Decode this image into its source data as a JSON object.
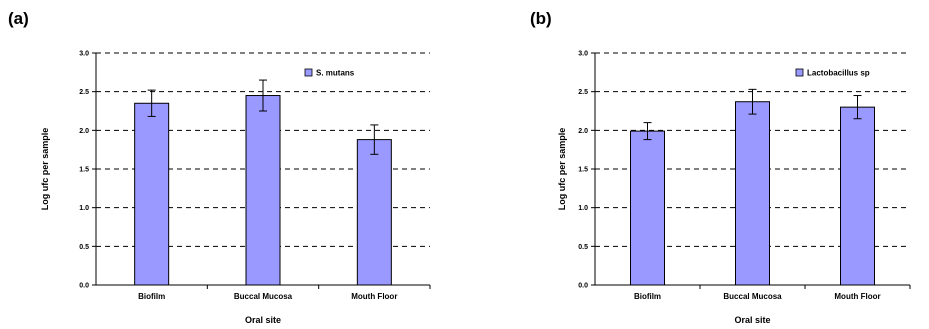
{
  "chart_data": [
    {
      "panel_label": "(a)",
      "type": "bar",
      "categories": [
        "Biofilm",
        "Buccal Mucosa",
        "Mouth Floor"
      ],
      "series": [
        {
          "name": "S. mutans",
          "values": [
            2.35,
            2.45,
            1.88
          ],
          "errors": [
            0.17,
            0.2,
            0.19
          ]
        }
      ],
      "xlabel": "Oral site",
      "ylabel": "Log ufc per sample",
      "ylim": [
        0.0,
        3.0
      ],
      "yticks": [
        "3.0",
        "2.5",
        "2.0",
        "1.5",
        "1.0",
        "0.5",
        "0.0"
      ],
      "grid": "dashed horizontal",
      "legend_position": "top-right",
      "bar_color": "#9999ff"
    },
    {
      "panel_label": "(b)",
      "type": "bar",
      "categories": [
        "Biofilm",
        "Buccal Mucosa",
        "Mouth Floor"
      ],
      "series": [
        {
          "name": "Lactobacillus sp",
          "values": [
            1.99,
            2.37,
            2.3
          ],
          "errors": [
            0.11,
            0.16,
            0.15
          ]
        }
      ],
      "xlabel": "Oral site",
      "ylabel": "Log ufc per sample",
      "ylim": [
        0.0,
        3.0
      ],
      "yticks": [
        "3.0",
        "2.5",
        "2.0",
        "1.5",
        "1.0",
        "0.5",
        "0.0"
      ],
      "grid": "dashed horizontal",
      "legend_position": "top-right",
      "bar_color": "#9999ff"
    }
  ]
}
